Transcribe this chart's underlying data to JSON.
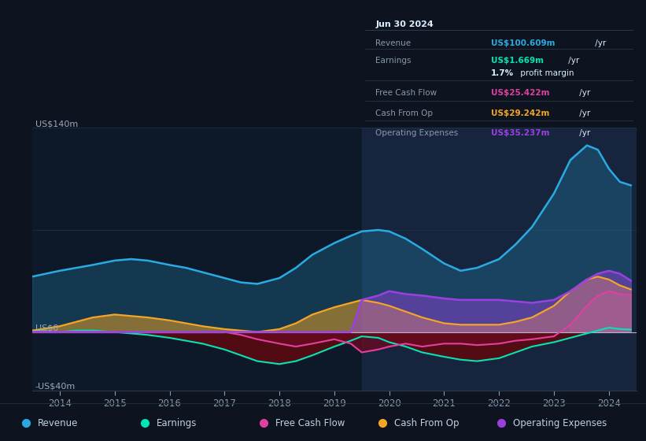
{
  "bg_color": "#0d1420",
  "plot_bg_color": "#0d1828",
  "grid_color": "#1a2535",
  "years": [
    2013.5,
    2014.0,
    2014.3,
    2014.6,
    2015.0,
    2015.3,
    2015.6,
    2016.0,
    2016.3,
    2016.6,
    2017.0,
    2017.3,
    2017.6,
    2018.0,
    2018.3,
    2018.6,
    2019.0,
    2019.3,
    2019.5,
    2019.8,
    2020.0,
    2020.3,
    2020.6,
    2021.0,
    2021.3,
    2021.6,
    2022.0,
    2022.3,
    2022.6,
    2023.0,
    2023.3,
    2023.6,
    2023.8,
    2024.0,
    2024.2,
    2024.4
  ],
  "revenue": [
    38,
    42,
    44,
    46,
    49,
    50,
    49,
    46,
    44,
    41,
    37,
    34,
    33,
    37,
    44,
    53,
    61,
    66,
    69,
    70,
    69,
    64,
    57,
    47,
    42,
    44,
    50,
    60,
    72,
    95,
    118,
    128,
    125,
    112,
    103,
    100.6
  ],
  "earnings": [
    1,
    0,
    1,
    1,
    0,
    -1,
    -2,
    -4,
    -6,
    -8,
    -12,
    -16,
    -20,
    -22,
    -20,
    -16,
    -10,
    -6,
    -3,
    -4,
    -7,
    -10,
    -14,
    -17,
    -19,
    -20,
    -18,
    -14,
    -10,
    -7,
    -4,
    -1,
    1,
    3,
    2,
    1.7
  ],
  "free_cash_flow": [
    0,
    0,
    0,
    0,
    0,
    0,
    0,
    0,
    0,
    0,
    0,
    -2,
    -5,
    -8,
    -10,
    -8,
    -5,
    -8,
    -14,
    -12,
    -10,
    -8,
    -10,
    -8,
    -8,
    -9,
    -8,
    -6,
    -5,
    -3,
    5,
    18,
    25,
    28,
    26,
    25.4
  ],
  "cash_from_op": [
    1,
    4,
    7,
    10,
    12,
    11,
    10,
    8,
    6,
    4,
    2,
    1,
    0,
    2,
    6,
    12,
    17,
    20,
    22,
    20,
    18,
    14,
    10,
    6,
    5,
    5,
    5,
    7,
    10,
    18,
    28,
    36,
    38,
    36,
    32,
    29.2
  ],
  "operating_expenses": [
    0,
    0,
    0,
    0,
    0,
    0,
    0,
    0,
    0,
    0,
    0,
    0,
    0,
    0,
    0,
    0,
    0,
    0,
    22,
    25,
    28,
    26,
    25,
    23,
    22,
    22,
    22,
    21,
    20,
    22,
    28,
    36,
    40,
    42,
    40,
    35.2
  ],
  "highlight_start": 2019.5,
  "ylim": [
    -40,
    140
  ],
  "xlim_start": 2013.5,
  "xlim_end": 2024.5,
  "xticks": [
    2014,
    2015,
    2016,
    2017,
    2018,
    2019,
    2020,
    2021,
    2022,
    2023,
    2024
  ],
  "revenue_color": "#29abe2",
  "earnings_color": "#00e5b4",
  "free_cash_flow_color": "#e040a0",
  "cash_from_op_color": "#f5a623",
  "operating_expenses_color": "#9b40e0",
  "info_box": {
    "date": "Jun 30 2024",
    "revenue_label": "Revenue",
    "revenue_value": "US$100.609m",
    "earnings_label": "Earnings",
    "earnings_value": "US$1.669m",
    "margin_value": "1.7%",
    "margin_text": " profit margin",
    "fcf_label": "Free Cash Flow",
    "fcf_value": "US$25.422m",
    "cashop_label": "Cash From Op",
    "cashop_value": "US$29.242m",
    "opex_label": "Operating Expenses",
    "opex_value": "US$35.237m",
    "yr_text": " /yr"
  },
  "legend_items": [
    {
      "label": "Revenue",
      "color": "#29abe2"
    },
    {
      "label": "Earnings",
      "color": "#00e5b4"
    },
    {
      "label": "Free Cash Flow",
      "color": "#e040a0"
    },
    {
      "label": "Cash From Op",
      "color": "#f5a623"
    },
    {
      "label": "Operating Expenses",
      "color": "#9b40e0"
    }
  ]
}
